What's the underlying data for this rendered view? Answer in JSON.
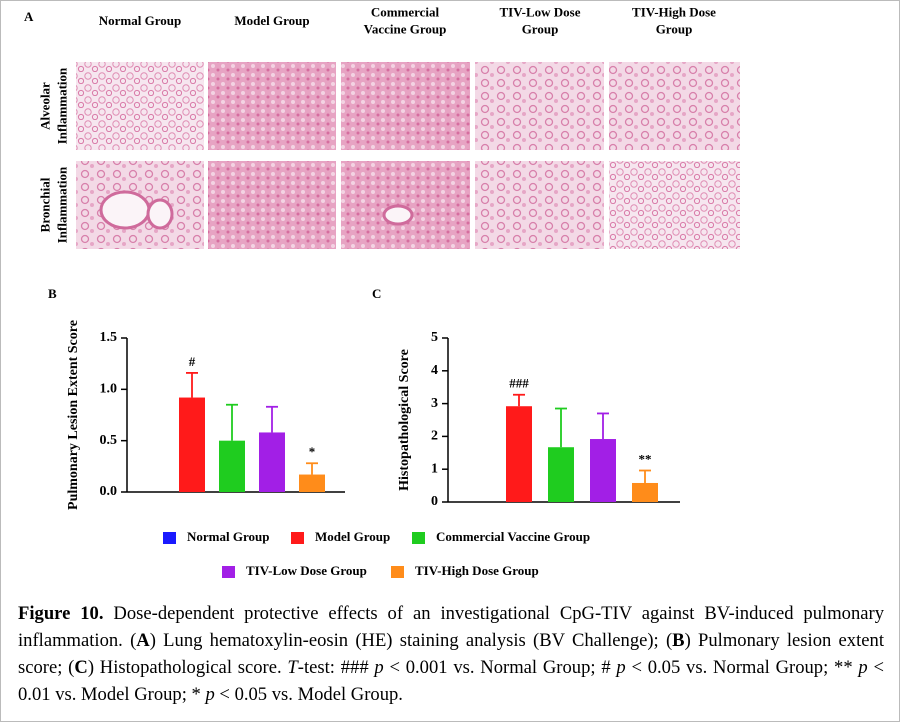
{
  "panel_a": {
    "label": "A",
    "columns": [
      "Normal Group",
      "Model Group",
      "Commercial Vaccine Group",
      "TIV-Low Dose Group",
      "TIV-High Dose Group"
    ],
    "rows": [
      "Alveolar Inflammation",
      "Bronchial Inflammation"
    ]
  },
  "chart_data": [
    {
      "type": "bar",
      "panel": "B",
      "ylabel": "Pulmonary Lesion Extent Score",
      "categories": [
        "Normal Group",
        "Model Group",
        "Commercial Vaccine Group",
        "TIV-Low Dose Group",
        "TIV-High Dose Group"
      ],
      "values": [
        0,
        0.92,
        0.5,
        0.58,
        0.17
      ],
      "errors": [
        0,
        0.24,
        0.35,
        0.25,
        0.11
      ],
      "value_labels": [
        null,
        "#",
        null,
        null,
        "*"
      ],
      "colors": [
        "#1a1aff",
        "#ff1a1a",
        "#1fcc1f",
        "#a21fe6",
        "#ff8c1a"
      ],
      "ylim": [
        0,
        1.5
      ],
      "yticks": [
        {
          "value": 0,
          "label": "0.0"
        },
        {
          "value": 0.5,
          "label": "0.5"
        },
        {
          "value": 1,
          "label": "1.0"
        },
        {
          "value": 1.5,
          "label": "1.5"
        }
      ]
    },
    {
      "type": "bar",
      "panel": "C",
      "ylabel": "Histopathological Score",
      "categories": [
        "Normal Group",
        "Model Group",
        "Commercial Vaccine Group",
        "TIV-Low Dose Group",
        "TIV-High Dose Group"
      ],
      "values": [
        0,
        2.92,
        1.67,
        1.92,
        0.58
      ],
      "errors": [
        0,
        0.35,
        1.18,
        0.78,
        0.38
      ],
      "value_labels": [
        null,
        "###",
        null,
        null,
        "**"
      ],
      "colors": [
        "#1a1aff",
        "#ff1a1a",
        "#1fcc1f",
        "#a21fe6",
        "#ff8c1a"
      ],
      "ylim": [
        0,
        5
      ],
      "yticks": [
        0,
        1,
        2,
        3,
        4,
        5
      ]
    }
  ],
  "caption": [
    "Figure 10.",
    " Dose-dependent protective effects of an investigational CpG-TIV against BV-induced pulmonary inflammation. (",
    "A",
    ") Lung hematoxylin-eosin (HE) staining analysis (BV Challenge); (",
    "B",
    ") Pulmonary lesion extent score; (",
    "C",
    ") Histopathological score. ",
    "T",
    "-test: ### ",
    "p",
    " < 0.001 vs. Normal Group; # ",
    "p",
    " < 0.05 vs. Normal Group; ** ",
    "p",
    " < 0.01 vs. Model Group; * ",
    "p",
    " < 0.05 vs. Model Group."
  ]
}
